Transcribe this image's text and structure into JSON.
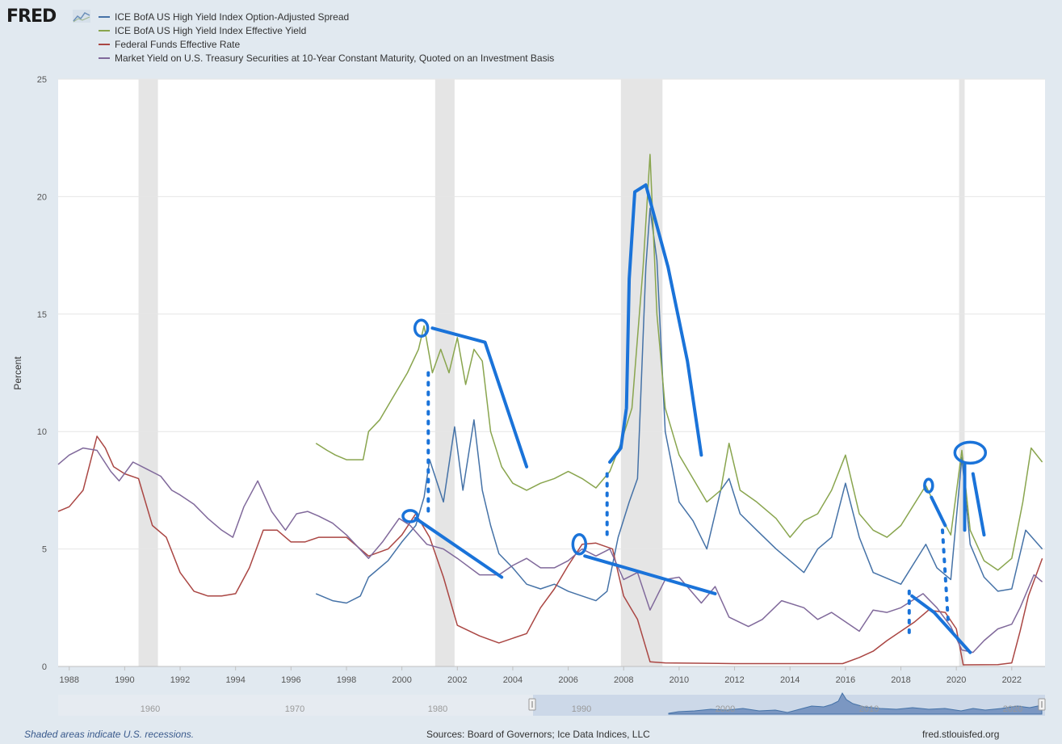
{
  "header": {
    "logo_text": "FRED"
  },
  "legend": [
    {
      "label": "ICE BofA US High Yield Index Option-Adjusted Spread",
      "color": "#4572a7"
    },
    {
      "label": "ICE BofA US High Yield Index Effective Yield",
      "color": "#89a54e"
    },
    {
      "label": "Federal Funds Effective Rate",
      "color": "#aa4643"
    },
    {
      "label": "Market Yield on U.S. Treasury Securities at 10-Year Constant Maturity, Quoted on an Investment Basis",
      "color": "#80699b"
    }
  ],
  "footer": {
    "note": "Shaded areas indicate U.S. recessions.",
    "sources": "Sources: Board of Governors; Ice Data Indices, LLC",
    "url": "fred.stlouisfed.org"
  },
  "navigator": {
    "tick_labels": [
      "1960",
      "1970",
      "1980",
      "1990",
      "2000",
      "2010",
      "2020"
    ]
  },
  "chart_data": {
    "type": "line",
    "ylabel": "Percent",
    "xlim": [
      1987.6,
      2023.2
    ],
    "ylim": [
      0,
      25
    ],
    "yticks": [
      0,
      5,
      10,
      15,
      20,
      25
    ],
    "xticks": [
      1988,
      1990,
      1992,
      1994,
      1996,
      1998,
      2000,
      2002,
      2004,
      2006,
      2008,
      2010,
      2012,
      2014,
      2016,
      2018,
      2020,
      2022
    ],
    "grid": true,
    "recessions": [
      [
        1990.5,
        1991.2
      ],
      [
        2001.2,
        2001.9
      ],
      [
        2007.9,
        2009.4
      ],
      [
        2020.1,
        2020.3
      ]
    ],
    "series": [
      {
        "name": "ICE BofA US High Yield Index Option-Adjusted Spread",
        "color": "#4572a7",
        "x": [
          1996.9,
          1997.5,
          1998.0,
          1998.5,
          1998.8,
          1999.5,
          2000.0,
          2000.5,
          2000.8,
          2001.0,
          2001.5,
          2001.9,
          2002.2,
          2002.6,
          2002.9,
          2003.2,
          2003.5,
          2004.0,
          2004.5,
          2005.0,
          2005.5,
          2006.0,
          2006.5,
          2007.0,
          2007.4,
          2007.8,
          2008.2,
          2008.5,
          2008.8,
          2008.95,
          2009.2,
          2009.5,
          2010.0,
          2010.5,
          2011.0,
          2011.5,
          2011.8,
          2012.2,
          2012.8,
          2013.5,
          2014.5,
          2015.0,
          2015.5,
          2016.0,
          2016.5,
          2017.0,
          2018.0,
          2018.9,
          2019.3,
          2019.8,
          2020.2,
          2020.5,
          2021.0,
          2021.5,
          2022.0,
          2022.5,
          2023.1
        ],
        "y": [
          3.1,
          2.8,
          2.7,
          3.0,
          3.8,
          4.5,
          5.3,
          6.0,
          7.2,
          8.8,
          7.0,
          10.2,
          7.5,
          10.5,
          7.5,
          6.0,
          4.8,
          4.2,
          3.5,
          3.3,
          3.5,
          3.2,
          3.0,
          2.8,
          3.2,
          5.5,
          7.0,
          8.0,
          17.0,
          19.5,
          17.3,
          10.0,
          7.0,
          6.2,
          5.0,
          7.5,
          8.0,
          6.5,
          5.8,
          5.0,
          4.0,
          5.0,
          5.5,
          7.8,
          5.5,
          4.0,
          3.5,
          5.2,
          4.2,
          3.7,
          8.9,
          5.2,
          3.8,
          3.2,
          3.3,
          5.8,
          5.0
        ]
      },
      {
        "name": "ICE BofA US High Yield Index Effective Yield",
        "color": "#89a54e",
        "x": [
          1996.9,
          1997.3,
          1997.6,
          1998.0,
          1998.6,
          1998.8,
          1999.2,
          1999.7,
          2000.2,
          2000.6,
          2000.8,
          2001.1,
          2001.4,
          2001.7,
          2002.0,
          2002.3,
          2002.6,
          2002.9,
          2003.2,
          2003.6,
          2004.0,
          2004.5,
          2005.0,
          2005.5,
          2006.0,
          2006.5,
          2007.0,
          2007.5,
          2007.9,
          2008.3,
          2008.7,
          2008.95,
          2009.2,
          2009.5,
          2010.0,
          2010.5,
          2011.0,
          2011.5,
          2011.8,
          2012.2,
          2012.8,
          2013.5,
          2014.0,
          2014.5,
          2015.0,
          2015.5,
          2016.0,
          2016.5,
          2017.0,
          2017.5,
          2018.0,
          2018.9,
          2019.3,
          2019.8,
          2020.2,
          2020.5,
          2021.0,
          2021.5,
          2022.0,
          2022.4,
          2022.7,
          2023.1
        ],
        "y": [
          9.5,
          9.2,
          9.0,
          8.8,
          8.8,
          10.0,
          10.5,
          11.5,
          12.5,
          13.5,
          14.5,
          12.5,
          13.5,
          12.5,
          14.0,
          12.0,
          13.5,
          13.0,
          10.0,
          8.5,
          7.8,
          7.5,
          7.8,
          8.0,
          8.3,
          8.0,
          7.6,
          8.3,
          9.5,
          11.0,
          17.0,
          21.8,
          15.0,
          11.0,
          9.0,
          8.0,
          7.0,
          7.5,
          9.5,
          7.5,
          7.0,
          6.3,
          5.5,
          6.2,
          6.5,
          7.5,
          9.0,
          6.5,
          5.8,
          5.5,
          6.0,
          7.7,
          6.7,
          5.6,
          9.2,
          5.8,
          4.5,
          4.1,
          4.6,
          7.0,
          9.3,
          8.7
        ]
      },
      {
        "name": "Federal Funds Effective Rate",
        "color": "#aa4643",
        "x": [
          1987.6,
          1988.0,
          1988.5,
          1989.0,
          1989.3,
          1989.6,
          1990.0,
          1990.5,
          1991.0,
          1991.5,
          1992.0,
          1992.5,
          1993.0,
          1993.5,
          1994.0,
          1994.5,
          1995.0,
          1995.5,
          1996.0,
          1996.5,
          1997.0,
          1998.0,
          1998.8,
          1999.5,
          2000.0,
          2000.5,
          2001.0,
          2001.5,
          2002.0,
          2002.8,
          2003.5,
          2004.5,
          2005.0,
          2005.5,
          2006.0,
          2006.5,
          2007.0,
          2007.6,
          2008.0,
          2008.5,
          2008.95,
          2009.5,
          2012.0,
          2015.9,
          2016.5,
          2017.0,
          2017.5,
          2018.0,
          2018.5,
          2019.0,
          2019.6,
          2020.0,
          2020.25,
          2021.5,
          2022.0,
          2022.3,
          2022.6,
          2023.1
        ],
        "y": [
          6.6,
          6.8,
          7.5,
          9.8,
          9.3,
          8.5,
          8.2,
          8.0,
          6.0,
          5.5,
          4.0,
          3.2,
          3.0,
          3.0,
          3.1,
          4.2,
          5.8,
          5.8,
          5.3,
          5.3,
          5.5,
          5.5,
          4.7,
          5.0,
          5.6,
          6.5,
          5.5,
          3.8,
          1.75,
          1.3,
          1.0,
          1.4,
          2.5,
          3.3,
          4.3,
          5.2,
          5.25,
          5.0,
          3.0,
          2.0,
          0.2,
          0.15,
          0.12,
          0.12,
          0.38,
          0.65,
          1.1,
          1.5,
          1.9,
          2.4,
          2.3,
          1.6,
          0.07,
          0.08,
          0.15,
          1.5,
          3.0,
          4.6
        ]
      },
      {
        "name": "Market Yield on U.S. Treasury Securities at 10-Year Constant Maturity, Quoted on an Investment Basis",
        "color": "#80699b",
        "x": [
          1987.6,
          1988.0,
          1988.5,
          1989.0,
          1989.5,
          1989.8,
          1990.3,
          1990.8,
          1991.3,
          1991.7,
          1992.0,
          1992.5,
          1993.0,
          1993.5,
          1993.9,
          1994.3,
          1994.8,
          1995.3,
          1995.8,
          1996.2,
          1996.6,
          1997.0,
          1997.5,
          1998.0,
          1998.8,
          1999.3,
          1999.9,
          2000.3,
          2000.9,
          2001.5,
          2002.0,
          2002.8,
          2003.5,
          2004.0,
          2004.5,
          2005.0,
          2005.5,
          2006.0,
          2006.5,
          2007.0,
          2007.5,
          2008.0,
          2008.5,
          2008.95,
          2009.5,
          2010.0,
          2010.8,
          2011.3,
          2011.8,
          2012.5,
          2013.0,
          2013.7,
          2014.5,
          2015.0,
          2015.5,
          2016.5,
          2017.0,
          2017.5,
          2018.0,
          2018.8,
          2019.3,
          2019.8,
          2020.2,
          2020.6,
          2021.0,
          2021.5,
          2022.0,
          2022.3,
          2022.8,
          2023.1
        ],
        "y": [
          8.6,
          9.0,
          9.3,
          9.2,
          8.3,
          7.9,
          8.7,
          8.4,
          8.1,
          7.5,
          7.3,
          6.9,
          6.3,
          5.8,
          5.5,
          6.8,
          7.9,
          6.6,
          5.8,
          6.5,
          6.6,
          6.4,
          6.1,
          5.6,
          4.6,
          5.3,
          6.3,
          6.0,
          5.2,
          5.0,
          4.6,
          3.9,
          3.9,
          4.3,
          4.6,
          4.2,
          4.2,
          4.5,
          5.0,
          4.7,
          5.0,
          3.7,
          4.0,
          2.4,
          3.7,
          3.8,
          2.7,
          3.4,
          2.1,
          1.7,
          2.0,
          2.8,
          2.5,
          2.0,
          2.3,
          1.5,
          2.4,
          2.3,
          2.5,
          3.1,
          2.5,
          1.7,
          0.7,
          0.6,
          1.1,
          1.6,
          1.8,
          2.5,
          3.9,
          3.6
        ]
      }
    ]
  }
}
